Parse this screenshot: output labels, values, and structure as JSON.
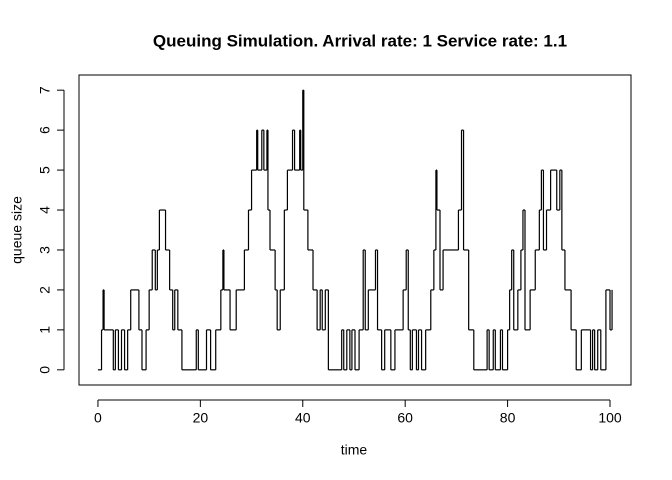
{
  "chart_data": {
    "type": "step",
    "title": "Queuing Simulation. Arrival rate: 1 Service rate: 1.1",
    "x_label": "time",
    "y_label": "queue size",
    "color": "#000000",
    "x": [
      0,
      0.7,
      1.0,
      1.2,
      3.0,
      3.4,
      4.0,
      4.6,
      5.2,
      5.8,
      6.4,
      8.0,
      8.6,
      9.4,
      10.0,
      10.6,
      11.2,
      11.6,
      12.0,
      13.2,
      14.0,
      14.6,
      15.0,
      15.6,
      16.4,
      19.2,
      19.6,
      21.2,
      22.0,
      23.0,
      24.0,
      24.4,
      24.6,
      25.8,
      27.0,
      28.6,
      29.4,
      30.0,
      31.0,
      31.2,
      32.0,
      32.4,
      33.0,
      33.2,
      33.6,
      34.6,
      35.0,
      35.6,
      36.4,
      37.0,
      38.0,
      38.4,
      39.4,
      39.6,
      40.0,
      40.2,
      41.0,
      42.0,
      42.8,
      43.4,
      43.8,
      44.4,
      45.0,
      47.6,
      48.0,
      48.6,
      49.2,
      49.6,
      50.2,
      51.0,
      51.8,
      52.2,
      52.8,
      54.2,
      54.6,
      55.4,
      56.0,
      57.2,
      58.0,
      59.6,
      60.2,
      60.6,
      61.0,
      61.4,
      62.2,
      62.6,
      63.2,
      64.0,
      65.0,
      65.6,
      66.0,
      66.2,
      66.8,
      67.4,
      70.4,
      71.0,
      71.4,
      72.4,
      73.4,
      76.0,
      76.4,
      77.2,
      77.6,
      78.6,
      79.0,
      80.0,
      80.4,
      80.8,
      81.2,
      82.0,
      82.6,
      83.0,
      83.4,
      84.4,
      85.4,
      86.2,
      86.6,
      87.0,
      87.6,
      88.4,
      89.6,
      90.2,
      90.6,
      91.2,
      92.4,
      93.4,
      94.4,
      96.2,
      96.6,
      97.0,
      97.6,
      98.2,
      99.2,
      100.0,
      100.4
    ],
    "values": [
      0,
      1,
      2,
      1,
      0,
      1,
      0,
      1,
      0,
      1,
      2,
      1,
      0,
      1,
      2,
      3,
      2,
      3,
      4,
      3,
      2,
      1,
      2,
      1,
      0,
      1,
      0,
      1,
      0,
      1,
      2,
      3,
      2,
      1,
      2,
      3,
      4,
      5,
      6,
      5,
      6,
      5,
      6,
      4,
      3,
      2,
      1,
      2,
      4,
      5,
      6,
      5,
      6,
      5,
      7,
      4,
      3,
      2,
      1,
      2,
      1,
      2,
      0,
      1,
      0,
      1,
      0,
      1,
      0,
      1,
      3,
      1,
      2,
      3,
      1,
      0,
      1,
      0,
      1,
      2,
      3,
      1,
      0,
      1,
      0,
      1,
      0,
      1,
      2,
      3,
      5,
      4,
      2,
      3,
      4,
      6,
      3,
      1,
      0,
      1,
      0,
      1,
      0,
      1,
      0,
      1,
      2,
      3,
      1,
      2,
      3,
      4,
      1,
      2,
      3,
      4,
      5,
      3,
      4,
      5,
      4,
      5,
      3,
      2,
      1,
      0,
      1,
      0,
      1,
      0,
      1,
      0,
      2,
      1,
      2
    ],
    "xlim": [
      -3.7,
      104.1
    ],
    "ylim": [
      -0.38,
      7.38
    ],
    "xticks": [
      0,
      20,
      40,
      60,
      80,
      100
    ],
    "yticks": [
      0,
      1,
      2,
      3,
      4,
      5,
      6,
      7
    ]
  }
}
